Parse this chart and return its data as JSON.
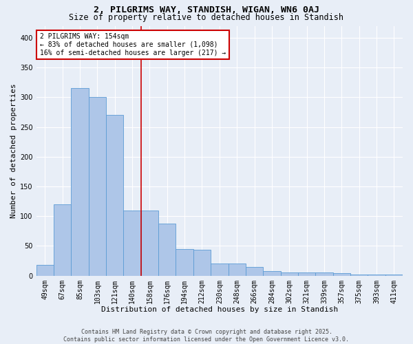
{
  "title": "2, PILGRIMS WAY, STANDISH, WIGAN, WN6 0AJ",
  "subtitle": "Size of property relative to detached houses in Standish",
  "xlabel": "Distribution of detached houses by size in Standish",
  "ylabel": "Number of detached properties",
  "footer_line1": "Contains HM Land Registry data © Crown copyright and database right 2025.",
  "footer_line2": "Contains public sector information licensed under the Open Government Licence v3.0.",
  "annotation_line1": "2 PILGRIMS WAY: 154sqm",
  "annotation_line2": "← 83% of detached houses are smaller (1,098)",
  "annotation_line3": "16% of semi-detached houses are larger (217) →",
  "bar_values": [
    18,
    120,
    315,
    300,
    270,
    110,
    110,
    88,
    45,
    44,
    20,
    20,
    15,
    8,
    6,
    6,
    5,
    4,
    2,
    2,
    2
  ],
  "categories": [
    "49sqm",
    "67sqm",
    "85sqm",
    "103sqm",
    "121sqm",
    "140sqm",
    "158sqm",
    "176sqm",
    "194sqm",
    "212sqm",
    "230sqm",
    "248sqm",
    "266sqm",
    "284sqm",
    "302sqm",
    "321sqm",
    "339sqm",
    "357sqm",
    "375sqm",
    "393sqm",
    "411sqm"
  ],
  "bar_color": "#aec6e8",
  "bar_edge_color": "#5b9bd5",
  "ref_line_color": "#cc0000",
  "ref_line_index": 6,
  "annotation_box_color": "#cc0000",
  "ylim": [
    0,
    420
  ],
  "yticks": [
    0,
    50,
    100,
    150,
    200,
    250,
    300,
    350,
    400
  ],
  "bg_color": "#e8eef7",
  "plot_bg_color": "#e8eef7",
  "grid_color": "#ffffff",
  "title_fontsize": 9.5,
  "subtitle_fontsize": 8.5,
  "tick_fontsize": 7,
  "label_fontsize": 8,
  "annotation_fontsize": 7,
  "footer_fontsize": 6
}
